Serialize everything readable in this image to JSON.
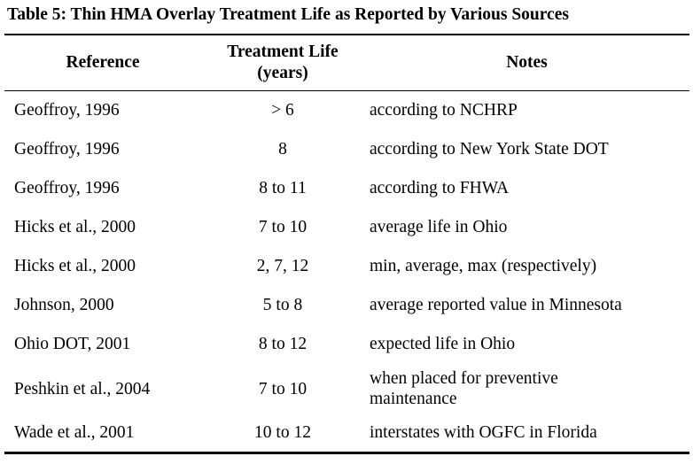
{
  "caption": "Table 5: Thin HMA Overlay Treatment Life as Reported by Various Sources",
  "headers": {
    "reference": "Reference",
    "life_line1": "Treatment Life",
    "life_line2": "(years)",
    "notes": "Notes"
  },
  "rows": [
    {
      "reference": "Geoffroy, 1996",
      "life": "> 6",
      "notes": "according to NCHRP"
    },
    {
      "reference": "Geoffroy, 1996",
      "life": "8",
      "notes": "according to New York State DOT"
    },
    {
      "reference": "Geoffroy, 1996",
      "life": "8 to 11",
      "notes": "according to FHWA"
    },
    {
      "reference": "Hicks et al., 2000",
      "life": "7 to 10",
      "notes": "average life in Ohio"
    },
    {
      "reference": "Hicks et al., 2000",
      "life": "2, 7, 12",
      "notes": "min, average, max (respectively)"
    },
    {
      "reference": "Johnson, 2000",
      "life": "5 to 8",
      "notes": "average reported value in Minnesota"
    },
    {
      "reference": "Ohio DOT, 2001",
      "life": "8 to 12",
      "notes": "expected life in Ohio"
    },
    {
      "reference": "Peshkin et al., 2004",
      "life": "7 to 10",
      "notes_line1": "when placed for preventive",
      "notes_line2": "maintenance"
    },
    {
      "reference": "Wade et al., 2001",
      "life": "10 to 12",
      "notes": "interstates with OGFC in Florida"
    }
  ]
}
